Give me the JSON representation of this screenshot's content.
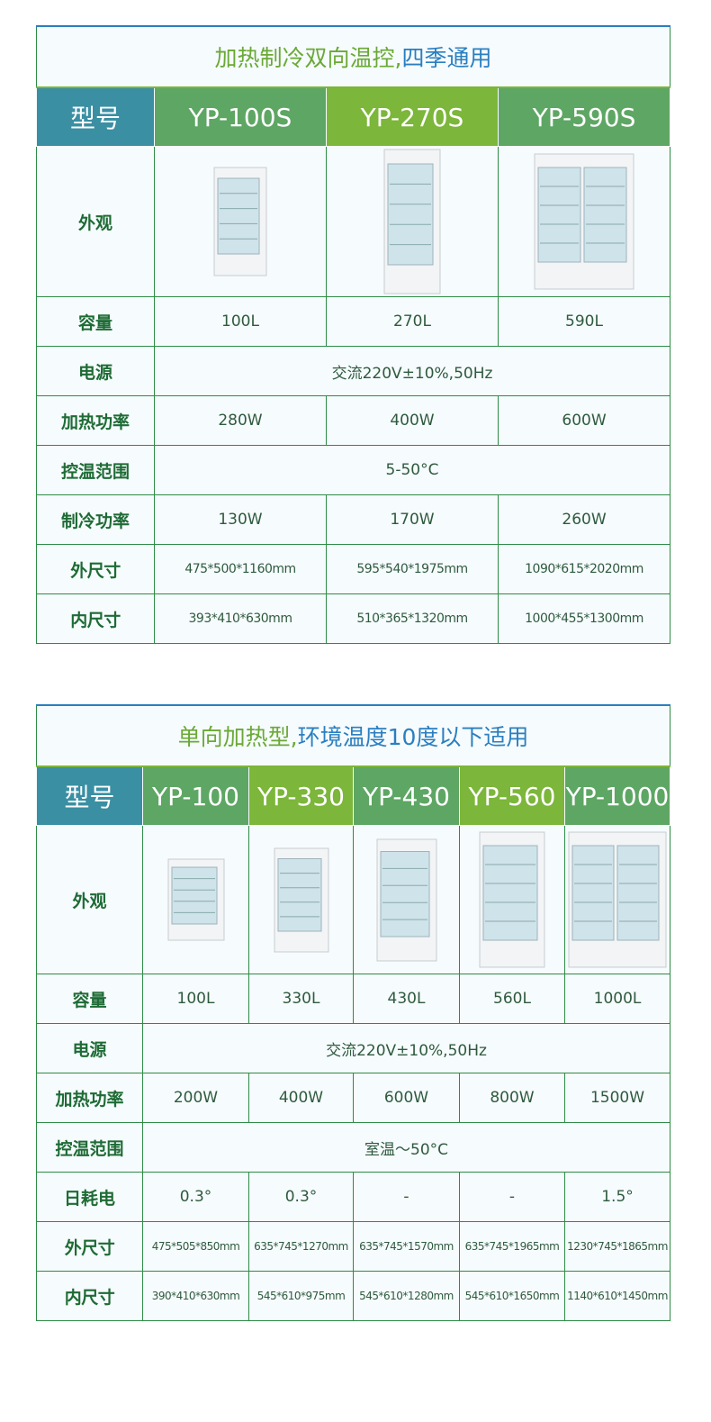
{
  "table1": {
    "title_green": "加热制冷双向温控,",
    "title_blue": "四季通用",
    "model_label": "型号",
    "models": [
      "YP-100S",
      "YP-270S",
      "YP-590S"
    ],
    "appearance_label": "外观",
    "rows": [
      {
        "label": "容量",
        "values": [
          "100L",
          "270L",
          "590L"
        ]
      },
      {
        "label": "电源",
        "merged": "交流220V±10%,50Hz"
      },
      {
        "label": "加热功率",
        "values": [
          "280W",
          "400W",
          "600W"
        ]
      },
      {
        "label": "控温范围",
        "merged": "5-50°C"
      },
      {
        "label": "制冷功率",
        "values": [
          "130W",
          "170W",
          "260W"
        ]
      },
      {
        "label": "外尺寸",
        "values": [
          "475*500*1160mm",
          "595*540*1975mm",
          "1090*615*2020mm"
        ]
      },
      {
        "label": "内尺寸",
        "values": [
          "393*410*630mm",
          "510*365*1320mm",
          "1000*455*1300mm"
        ]
      }
    ]
  },
  "table2": {
    "title_green": "单向加热型,",
    "title_blue": "环境温度10度以下适用",
    "model_label": "型号",
    "models": [
      "YP-100",
      "YP-330",
      "YP-430",
      "YP-560",
      "YP-1000"
    ],
    "appearance_label": "外观",
    "rows": [
      {
        "label": "容量",
        "values": [
          "100L",
          "330L",
          "430L",
          "560L",
          "1000L"
        ]
      },
      {
        "label": "电源",
        "merged": "交流220V±10%,50Hz"
      },
      {
        "label": "加热功率",
        "values": [
          "200W",
          "400W",
          "600W",
          "800W",
          "1500W"
        ]
      },
      {
        "label": "控温范围",
        "merged": "室温～50°C"
      },
      {
        "label": "日耗电",
        "values": [
          "0.3°",
          "0.3°",
          "-",
          "-",
          "1.5°"
        ]
      },
      {
        "label": "外尺寸",
        "values": [
          "475*505*850mm",
          "635*745*1270mm",
          "635*745*1570mm",
          "635*745*1965mm",
          "1230*745*1865mm"
        ]
      },
      {
        "label": "内尺寸",
        "values": [
          "390*410*630mm",
          "545*610*975mm",
          "545*610*1280mm",
          "545*610*1650mm",
          "1140*610*1450mm"
        ]
      }
    ]
  },
  "colors": {
    "label_header": "#3a8fa3",
    "green": "#5ea664",
    "lime": "#7cb63a",
    "border": "#2e8b46",
    "title_blue": "#2a7fc0"
  }
}
